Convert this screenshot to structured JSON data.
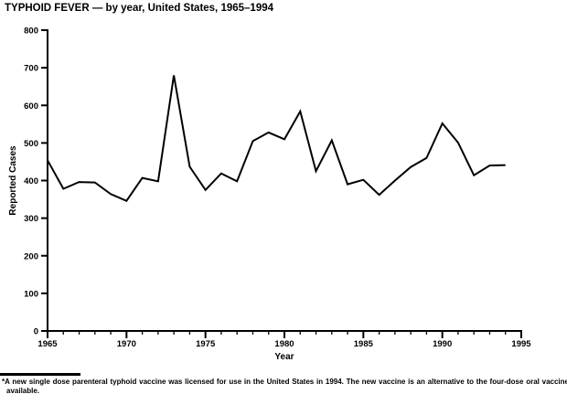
{
  "title": "TYPHOID FEVER — by year, United States, 1965–1994",
  "footnote": {
    "marker": "*",
    "text": "A new single dose parenteral typhoid vaccine was licensed for use in the United States in 1994. The new vaccine is an alternative to the four-dose oral vaccine available."
  },
  "colors": {
    "background": "#ffffff",
    "line": "#000000",
    "axis": "#000000",
    "text": "#000000"
  },
  "chart_data": {
    "type": "line",
    "title": "TYPHOID FEVER — by year, United States, 1965–1994",
    "xlabel": "Year",
    "ylabel": "Reported Cases",
    "x": [
      1965,
      1966,
      1967,
      1968,
      1969,
      1970,
      1971,
      1972,
      1973,
      1974,
      1975,
      1976,
      1977,
      1978,
      1979,
      1980,
      1981,
      1982,
      1983,
      1984,
      1985,
      1986,
      1987,
      1988,
      1989,
      1990,
      1991,
      1992,
      1993,
      1994
    ],
    "values": [
      454,
      378,
      396,
      395,
      364,
      346,
      407,
      398,
      680,
      437,
      375,
      419,
      398,
      505,
      528,
      510,
      584,
      425,
      507,
      390,
      402,
      362,
      400,
      436,
      460,
      552,
      501,
      414,
      440,
      441
    ],
    "xlim": [
      1965,
      1995
    ],
    "ylim": [
      0,
      800
    ],
    "y_ticks": [
      0,
      100,
      200,
      300,
      400,
      500,
      600,
      700,
      800
    ],
    "x_major_ticks": [
      1965,
      1970,
      1975,
      1980,
      1985,
      1990,
      1995
    ],
    "x_minor_tick_interval": 1,
    "grid": false,
    "legend": "none",
    "marker": "none"
  }
}
